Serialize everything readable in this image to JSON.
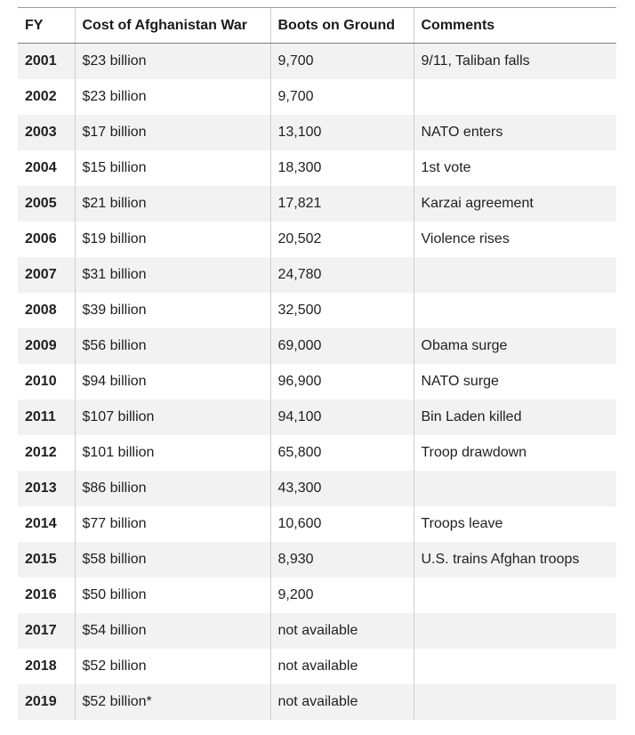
{
  "table": {
    "headers": {
      "fy": "FY",
      "cost": "Cost of Afghanistan War",
      "boots": "Boots on Ground",
      "comments": "Comments"
    },
    "rows": [
      {
        "fy": "2001",
        "cost": "$23 billion",
        "boots": "9,700",
        "comments": "9/11, Taliban falls"
      },
      {
        "fy": "2002",
        "cost": "$23 billion",
        "boots": "9,700",
        "comments": ""
      },
      {
        "fy": "2003",
        "cost": "$17 billion",
        "boots": "13,100",
        "comments": "NATO enters"
      },
      {
        "fy": "2004",
        "cost": "$15 billion",
        "boots": "18,300",
        "comments": "1st vote"
      },
      {
        "fy": "2005",
        "cost": "$21 billion",
        "boots": "17,821",
        "comments": "Karzai agreement"
      },
      {
        "fy": "2006",
        "cost": "$19 billion",
        "boots": "20,502",
        "comments": "Violence rises"
      },
      {
        "fy": "2007",
        "cost": "$31 billion",
        "boots": "24,780",
        "comments": ""
      },
      {
        "fy": "2008",
        "cost": "$39 billion",
        "boots": "32,500",
        "comments": ""
      },
      {
        "fy": "2009",
        "cost": "$56 billion",
        "boots": "69,000",
        "comments": "Obama surge"
      },
      {
        "fy": "2010",
        "cost": "$94 billion",
        "boots": "96,900",
        "comments": "NATO surge"
      },
      {
        "fy": "2011",
        "cost": "$107 billion",
        "boots": "94,100",
        "comments": "Bin Laden killed"
      },
      {
        "fy": "2012",
        "cost": "$101 billion",
        "boots": "65,800",
        "comments": "Troop drawdown"
      },
      {
        "fy": "2013",
        "cost": "$86 billion",
        "boots": "43,300",
        "comments": ""
      },
      {
        "fy": "2014",
        "cost": "$77 billion",
        "boots": "10,600",
        "comments": "Troops leave"
      },
      {
        "fy": "2015",
        "cost": "$58 billion",
        "boots": "8,930",
        "comments": "U.S. trains Afghan troops"
      },
      {
        "fy": "2016",
        "cost": "$50 billion",
        "boots": "9,200",
        "comments": ""
      },
      {
        "fy": "2017",
        "cost": "$54 billion",
        "boots": "not available",
        "comments": ""
      },
      {
        "fy": "2018",
        "cost": "$52 billion",
        "boots": "not available",
        "comments": ""
      },
      {
        "fy": "2019",
        "cost": "$52 billion*",
        "boots": "not available",
        "comments": ""
      }
    ]
  }
}
